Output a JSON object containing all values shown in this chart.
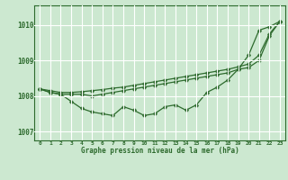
{
  "title": "Graphe pression niveau de la mer (hPa)",
  "background_color": "#cce8d0",
  "grid_color": "#ffffff",
  "line_color": "#2d6a2d",
  "xlim": [
    -0.5,
    23.5
  ],
  "ylim": [
    1006.75,
    1010.55
  ],
  "yticks": [
    1007,
    1008,
    1009,
    1010
  ],
  "xticks": [
    0,
    1,
    2,
    3,
    4,
    5,
    6,
    7,
    8,
    9,
    10,
    11,
    12,
    13,
    14,
    15,
    16,
    17,
    18,
    19,
    20,
    21,
    22,
    23
  ],
  "series_jagged": [
    1008.2,
    1008.1,
    1008.05,
    1007.85,
    1007.65,
    1007.55,
    1007.5,
    1007.45,
    1007.7,
    1007.6,
    1007.45,
    1007.5,
    1007.7,
    1007.75,
    1007.6,
    1007.75,
    1008.1,
    1008.25,
    1008.45,
    1008.75,
    1009.15,
    1009.85,
    1009.95,
    1010.1
  ],
  "series_mid": [
    1008.2,
    1008.1,
    1008.05,
    1008.05,
    1008.05,
    1008.0,
    1008.05,
    1008.1,
    1008.15,
    1008.2,
    1008.25,
    1008.3,
    1008.35,
    1008.4,
    1008.45,
    1008.5,
    1008.55,
    1008.6,
    1008.65,
    1008.75,
    1008.8,
    1009.0,
    1009.7,
    1010.1
  ],
  "series_smooth": [
    1008.2,
    1008.15,
    1008.1,
    1008.1,
    1008.12,
    1008.15,
    1008.18,
    1008.22,
    1008.25,
    1008.3,
    1008.35,
    1008.4,
    1008.45,
    1008.5,
    1008.55,
    1008.6,
    1008.65,
    1008.7,
    1008.75,
    1008.82,
    1008.9,
    1009.15,
    1009.75,
    1010.1
  ]
}
